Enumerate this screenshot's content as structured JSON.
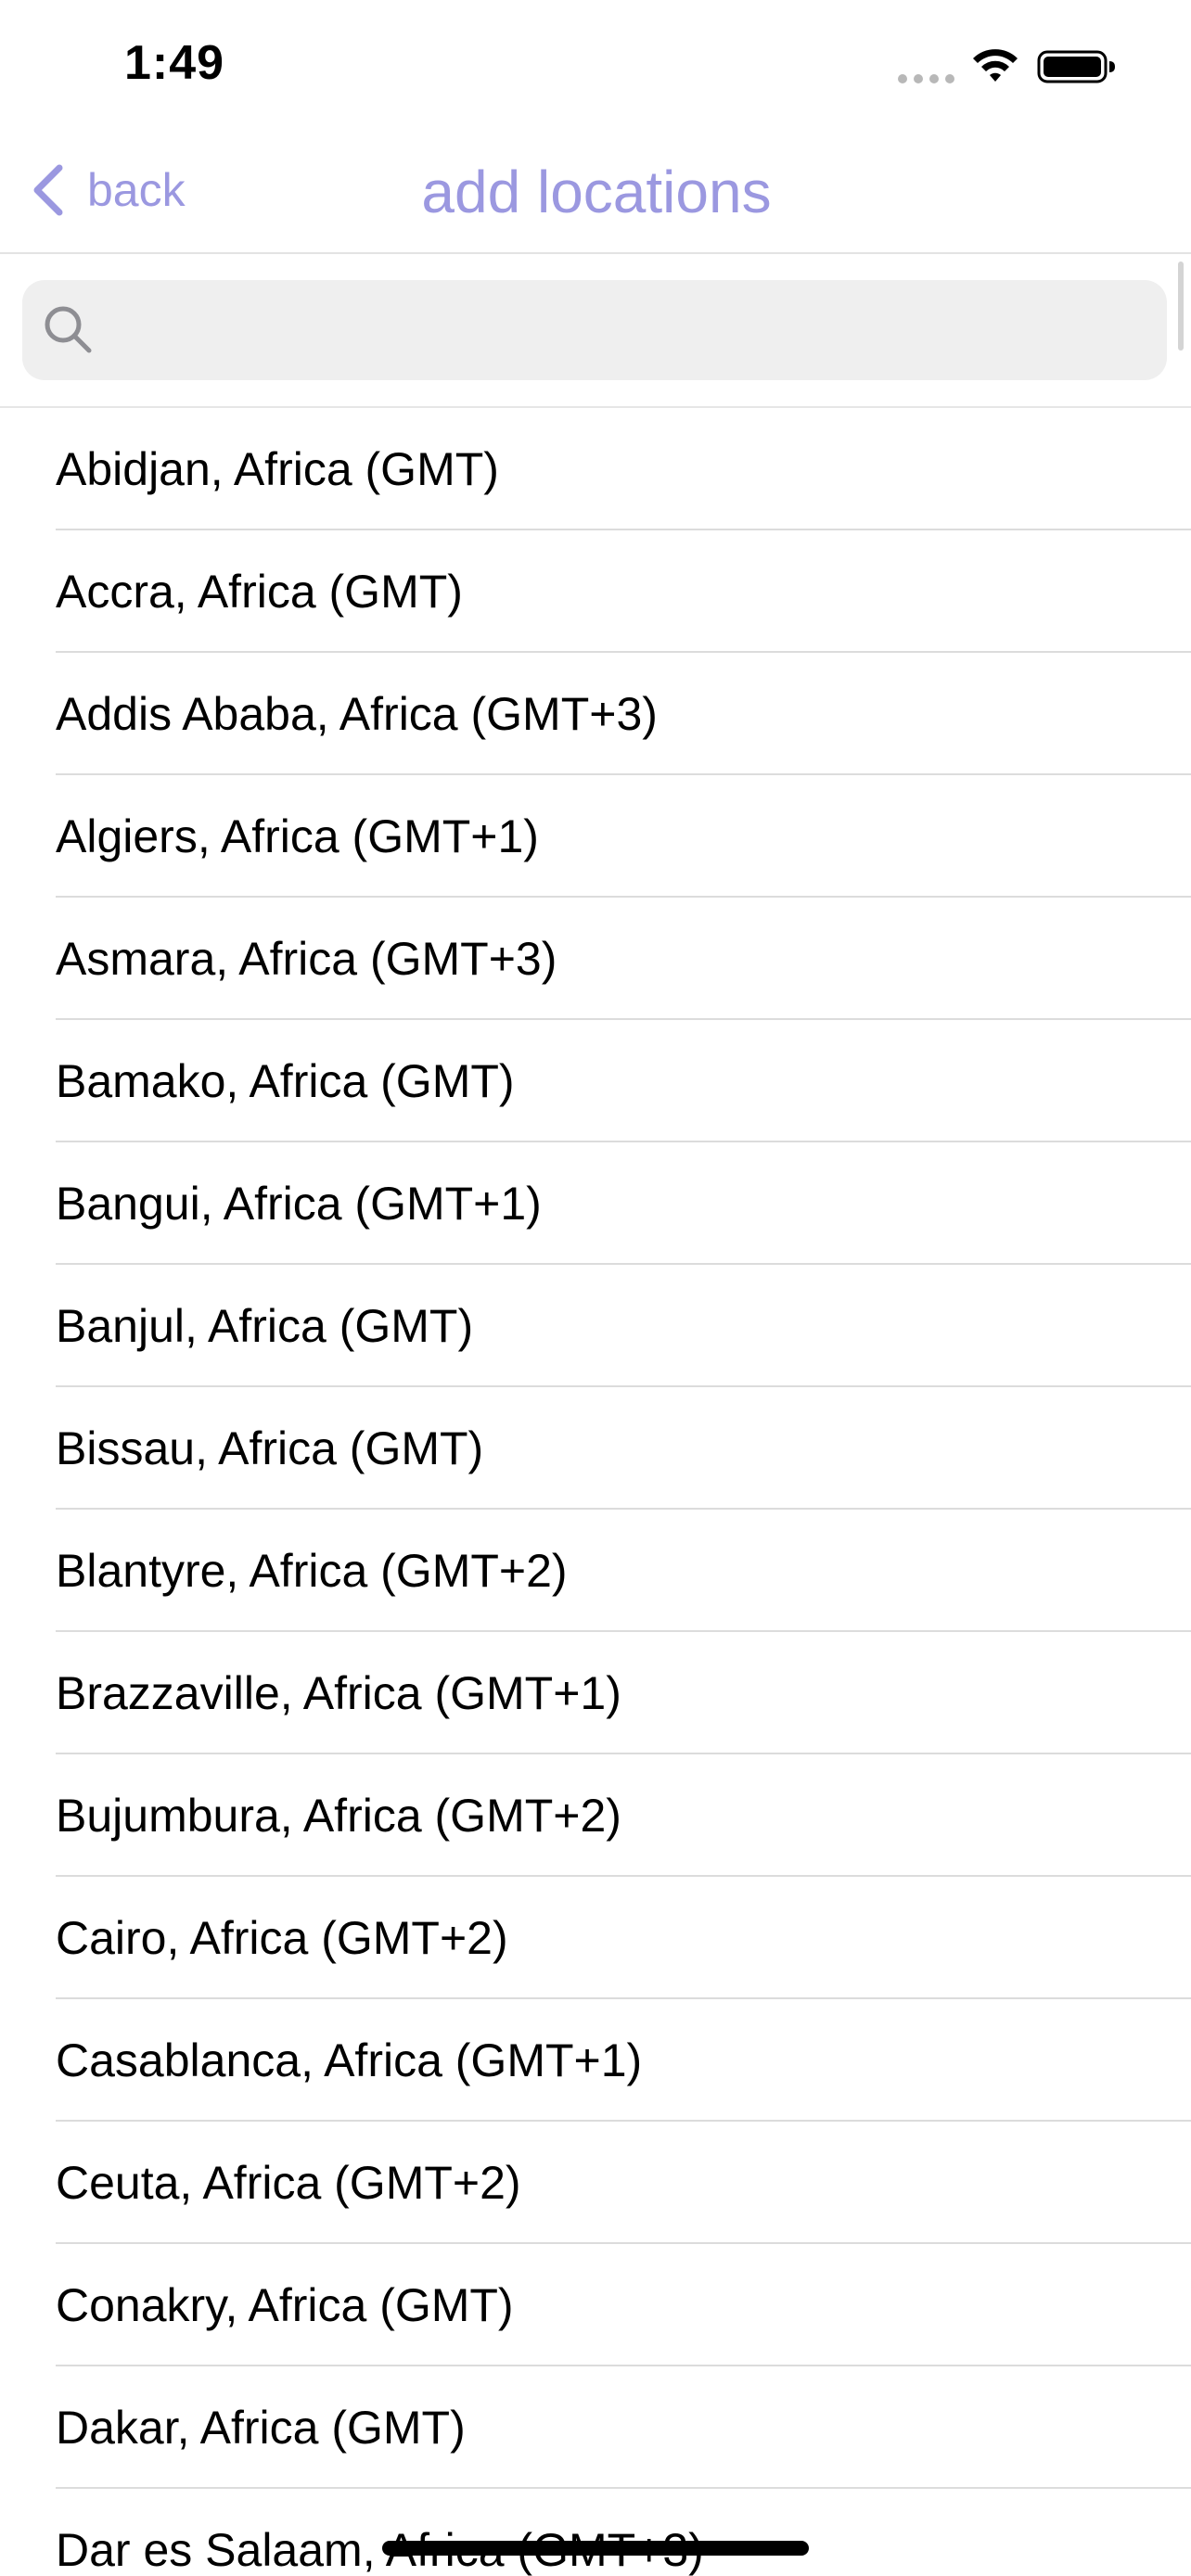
{
  "status_bar": {
    "time": "1:49",
    "signal_icon": "cellular-signal-dots",
    "wifi_icon": "wifi-icon",
    "battery_icon": "battery-full-icon"
  },
  "nav": {
    "back_label": "back",
    "title": "add locations",
    "accent_color": "#9b98e0"
  },
  "search": {
    "placeholder": "",
    "value": "",
    "icon": "search-icon"
  },
  "locations": [
    "Abidjan, Africa (GMT)",
    "Accra, Africa (GMT)",
    "Addis Ababa, Africa (GMT+3)",
    "Algiers, Africa (GMT+1)",
    "Asmara, Africa (GMT+3)",
    "Bamako, Africa (GMT)",
    "Bangui, Africa (GMT+1)",
    "Banjul, Africa (GMT)",
    "Bissau, Africa (GMT)",
    "Blantyre, Africa (GMT+2)",
    "Brazzaville, Africa (GMT+1)",
    "Bujumbura, Africa (GMT+2)",
    "Cairo, Africa (GMT+2)",
    "Casablanca, Africa (GMT+1)",
    "Ceuta, Africa (GMT+2)",
    "Conakry, Africa (GMT)",
    "Dakar, Africa (GMT)",
    "Dar es Salaam, Africa (GMT+3)"
  ]
}
